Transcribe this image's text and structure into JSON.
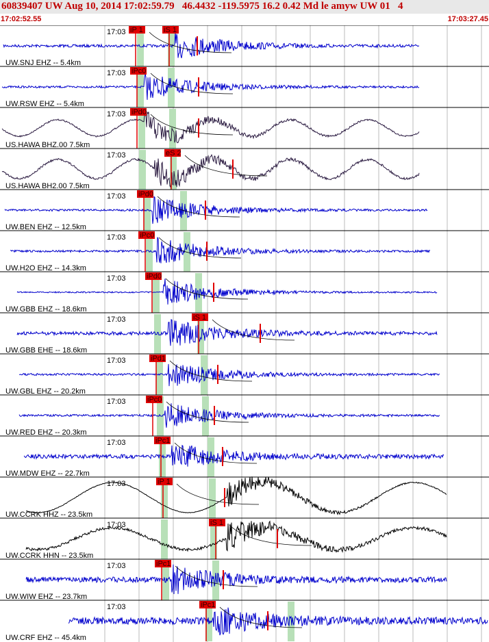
{
  "header": {
    "title": "60839407 UW Aug 10, 2014 17:02:59.79   46.4432 -119.5975 16.2 0.42 Md le amyw UW 01   4",
    "start_time": "17:02:52.55",
    "end_time": "17:03:27.45"
  },
  "traces": [
    {
      "time_label": "17:03",
      "station": "UW.SNJ EHZ -- 5.4km",
      "picks": [
        "iP 1",
        "iS 1"
      ]
    },
    {
      "time_label": "17:03",
      "station": "UW.RSW EHZ -- 5.4km",
      "picks": [
        "iPc0"
      ]
    },
    {
      "time_label": "17:03",
      "station": "US.HAWA BHZ.00 7.5km",
      "picks": [
        "iPd0"
      ]
    },
    {
      "time_label": "17:03",
      "station": "US.HAWA BH2.00 7.5km",
      "picks": [
        "eS 2"
      ]
    },
    {
      "time_label": "17:03",
      "station": "UW.BEN EHZ -- 12.5km",
      "picks": [
        "iPd0"
      ]
    },
    {
      "time_label": "17:03",
      "station": "UW.H2O EHZ -- 14.3km",
      "picks": [
        "iPc0"
      ]
    },
    {
      "time_label": "17:03",
      "station": "UW.GBB EHZ -- 18.6km",
      "picks": [
        "iPd0"
      ]
    },
    {
      "time_label": "17:03",
      "station": "UW.GBB EHE -- 18.6km",
      "picks": [
        "iS 1"
      ]
    },
    {
      "time_label": "17:03",
      "station": "UW.GBL EHZ -- 20.2km",
      "picks": [
        "iPd1"
      ]
    },
    {
      "time_label": "17:03",
      "station": "UW.RED EHZ -- 20.3km",
      "picks": [
        "iPc0"
      ]
    },
    {
      "time_label": "17:03",
      "station": "UW.MDW EHZ -- 22.7km",
      "picks": [
        "iPc1"
      ]
    },
    {
      "time_label": "17:03",
      "station": "UW.CCRK HHZ -- 23.5km",
      "picks": [
        "iP 1"
      ]
    },
    {
      "time_label": "17:03",
      "station": "UW.CCRK HHN -- 23.5km",
      "picks": [
        "iS 1"
      ]
    },
    {
      "time_label": "17:03",
      "station": "UW.WIW EHZ -- 23.7km",
      "picks": [
        "iPc1"
      ]
    },
    {
      "time_label": "17:03",
      "station": "UW.CRF EHZ -- 45.4km",
      "picks": [
        "iPc1"
      ]
    }
  ]
}
